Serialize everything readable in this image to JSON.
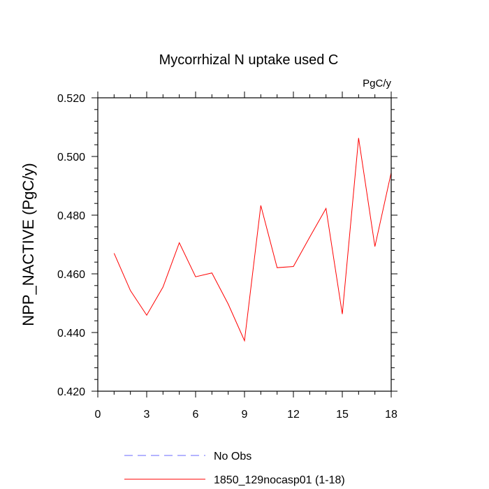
{
  "chart_data": {
    "type": "line",
    "title": "Mycorrhizal N uptake used C",
    "units": "PgC/y",
    "ylabel": "NPP_NACTIVE  (PgC/y)",
    "xlabel": "",
    "xlim": [
      0,
      18
    ],
    "ylim": [
      0.42,
      0.52
    ],
    "x_ticks": [
      0,
      3,
      6,
      9,
      12,
      15,
      18
    ],
    "x_tick_labels": [
      "0",
      "3",
      "6",
      "9",
      "12",
      "15",
      "18"
    ],
    "y_ticks": [
      0.42,
      0.44,
      0.46,
      0.48,
      0.5,
      0.52
    ],
    "y_tick_labels": [
      "0.420",
      "0.440",
      "0.460",
      "0.480",
      "0.500",
      "0.520"
    ],
    "grid": false,
    "legend_position": "bottom",
    "series": [
      {
        "name": "1850_129nocasp01 (1-18)",
        "color": "#ff0000",
        "style": "solid",
        "x": [
          1,
          2,
          3,
          4,
          5,
          6,
          7,
          8,
          9,
          10,
          11,
          12,
          13,
          14,
          15,
          16,
          17,
          18
        ],
        "values": [
          0.467,
          0.4543,
          0.4459,
          0.4555,
          0.4706,
          0.459,
          0.4603,
          0.4497,
          0.4372,
          0.4833,
          0.4621,
          0.4625,
          0.4725,
          0.4823,
          0.4463,
          0.5063,
          0.4693,
          0.4945
        ]
      }
    ],
    "legend": [
      {
        "label": "No Obs",
        "color": "#6a6aff",
        "style": "dashed"
      },
      {
        "label": "1850_129nocasp01 (1-18)",
        "color": "#ff0000",
        "style": "solid"
      }
    ]
  }
}
